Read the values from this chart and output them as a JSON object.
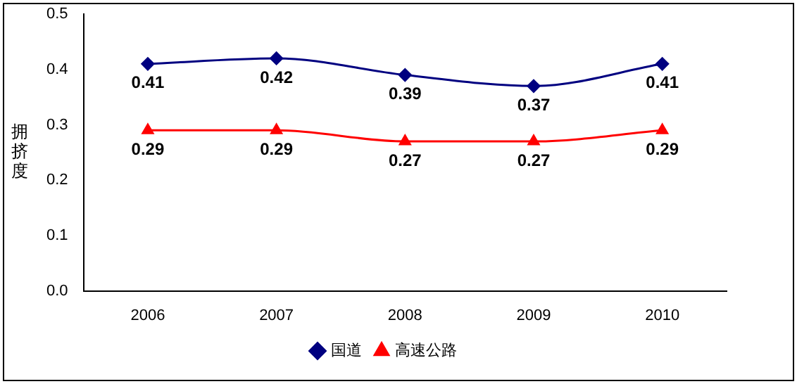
{
  "chart_data": {
    "type": "line",
    "ylabel": "拥挤度",
    "categories": [
      "2006",
      "2007",
      "2008",
      "2009",
      "2010"
    ],
    "series": [
      {
        "name": "国道",
        "color": "#000080",
        "marker": "diamond",
        "values": [
          0.41,
          0.42,
          0.39,
          0.37,
          0.41
        ]
      },
      {
        "name": "高速公路",
        "color": "#ff0000",
        "marker": "triangle",
        "values": [
          0.29,
          0.29,
          0.27,
          0.27,
          0.29
        ]
      }
    ],
    "ylim": [
      0,
      0.5
    ],
    "yticks": [
      {
        "value": 0,
        "label": "0.0"
      },
      {
        "value": 0.1,
        "label": "0.1"
      },
      {
        "value": 0.2,
        "label": "0.2"
      },
      {
        "value": 0.3,
        "label": "0.3"
      },
      {
        "value": 0.4,
        "label": "0.4"
      },
      {
        "value": 0.5,
        "label": "0.5"
      }
    ],
    "grid": false,
    "legend": "bottom",
    "data_labels": true
  }
}
